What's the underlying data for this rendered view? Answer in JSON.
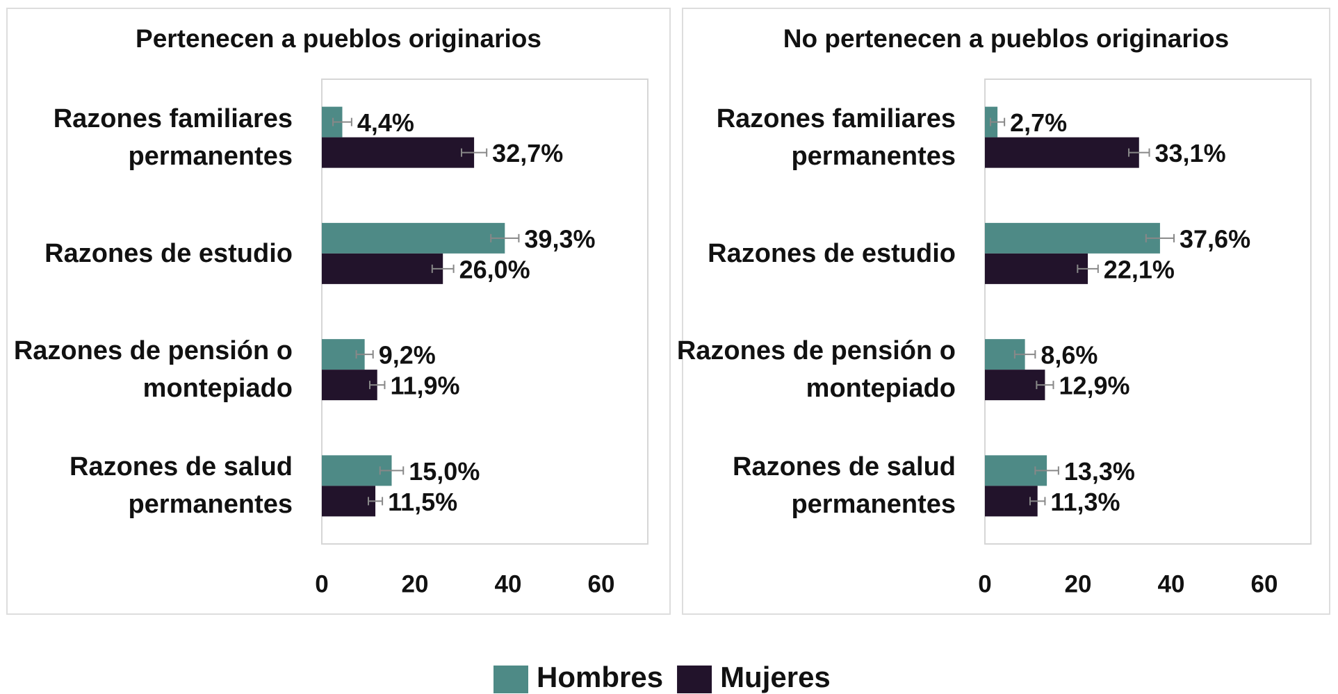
{
  "chart_data": [
    {
      "type": "bar",
      "orientation": "horizontal",
      "title": "Pertenecen a pueblos originarios",
      "categories": [
        "Razones familiares permanentes",
        "Razones de estudio",
        "Razones de pensión o montepiado",
        "Razones de salud permanentes"
      ],
      "series": [
        {
          "name": "Hombres",
          "color": "#4e8a86",
          "values": [
            4.4,
            39.3,
            9.2,
            15.0
          ],
          "errors": [
            2.0,
            3.0,
            1.8,
            2.5
          ],
          "value_labels": [
            "4,4%",
            "39,3%",
            "9,2%",
            "15,0%"
          ]
        },
        {
          "name": "Mujeres",
          "color": "#22132b",
          "values": [
            32.7,
            26.0,
            11.9,
            11.5
          ],
          "errors": [
            2.7,
            2.3,
            1.6,
            1.5
          ],
          "value_labels": [
            "32,7%",
            "26,0%",
            "11,9%",
            "11,5%"
          ]
        }
      ],
      "xlim": [
        0,
        70
      ],
      "xticks": [
        0,
        20,
        40,
        60
      ]
    },
    {
      "type": "bar",
      "orientation": "horizontal",
      "title": "No pertenecen a pueblos originarios",
      "categories": [
        "Razones familiares permanentes",
        "Razones de estudio",
        "Razones de pensión o montepiado",
        "Razones de salud permanentes"
      ],
      "series": [
        {
          "name": "Hombres",
          "color": "#4e8a86",
          "values": [
            2.7,
            37.6,
            8.6,
            13.3
          ],
          "errors": [
            1.5,
            3.0,
            2.2,
            2.5
          ],
          "value_labels": [
            "2,7%",
            "37,6%",
            "8,6%",
            "13,3%"
          ]
        },
        {
          "name": "Mujeres",
          "color": "#22132b",
          "values": [
            33.1,
            22.1,
            12.9,
            11.3
          ],
          "errors": [
            2.2,
            2.2,
            1.8,
            1.6
          ],
          "value_labels": [
            "33,1%",
            "22,1%",
            "12,9%",
            "11,3%"
          ]
        }
      ],
      "xlim": [
        0,
        70
      ],
      "xticks": [
        0,
        20,
        40,
        60
      ]
    }
  ]
}
